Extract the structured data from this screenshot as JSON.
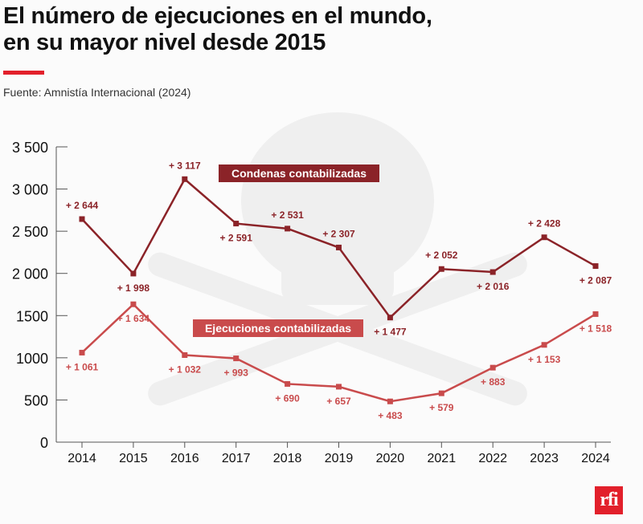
{
  "title_line1": "El número de ejecuciones en el mundo,",
  "title_line2": "en su mayor nivel desde 2015",
  "source": "Fuente: Amnistía Internacional (2024)",
  "logo": "rfi",
  "colors": {
    "condenas": "#8b2328",
    "ejecuciones": "#c94b4c",
    "accent": "#e2202b"
  },
  "chart_data": {
    "type": "line",
    "x": [
      2014,
      2015,
      2016,
      2017,
      2018,
      2019,
      2020,
      2021,
      2022,
      2023,
      2024
    ],
    "ylim": [
      0,
      3500
    ],
    "yticks": [
      0,
      500,
      1000,
      1500,
      2000,
      2500,
      3000,
      3500
    ],
    "ytick_labels": [
      "0",
      "500",
      "1000",
      "1500",
      "2 000",
      "2 500",
      "3 000",
      "3 500"
    ],
    "grid": false,
    "series": [
      {
        "name": "Condenas contabilizadas",
        "values": [
          2644,
          1998,
          3117,
          2591,
          2531,
          2307,
          1477,
          2052,
          2016,
          2428,
          2087
        ],
        "labels": [
          "+ 2 644",
          "+ 1 998",
          "+ 3 117",
          "+ 2 591",
          "+ 2 531",
          "+ 2 307",
          "+ 1 477",
          "+ 2 052",
          "+ 2 016",
          "+ 2 428",
          "+ 2 087"
        ]
      },
      {
        "name": "Ejecuciones contabilizadas",
        "values": [
          1061,
          1634,
          1032,
          993,
          690,
          657,
          483,
          579,
          883,
          1153,
          1518
        ],
        "labels": [
          "+ 1 061",
          "+ 1 634",
          "+ 1 032",
          "+ 993",
          "+ 690",
          "+ 657",
          "+ 483",
          "+ 579",
          "+ 883",
          "+ 1 153",
          "+ 1 518"
        ]
      }
    ]
  }
}
